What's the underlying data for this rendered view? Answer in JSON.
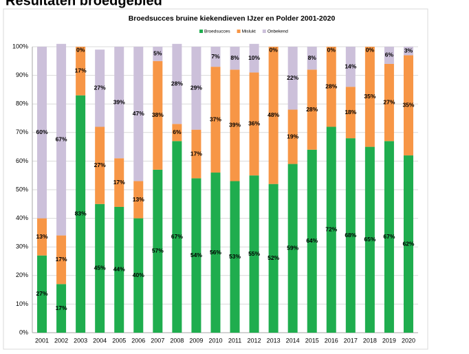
{
  "heading": "Resultaten broedgebied",
  "chart_data": {
    "type": "stacked_bar",
    "title": "Broedsucces bruine kiekendieven IJzer en Polder 2001-2020",
    "categories": [
      "2001",
      "2002",
      "2003",
      "2004",
      "2005",
      "2006",
      "2007",
      "2008",
      "2009",
      "2010",
      "2011",
      "2012",
      "2013",
      "2014",
      "2015",
      "2016",
      "2017",
      "2018",
      "2019",
      "2020"
    ],
    "series": [
      {
        "name": "Broedsucces",
        "color": "#1fad4e",
        "values": [
          27,
          17,
          83,
          45,
          44,
          40,
          57,
          67,
          54,
          56,
          53,
          55,
          52,
          59,
          64,
          72,
          68,
          65,
          67,
          62
        ],
        "value_labels": [
          "27%",
          "17%",
          "83%",
          "45%",
          "44%",
          "40%",
          "57%",
          "67%",
          "54%",
          "56%",
          "53%",
          "55%",
          "52%",
          "59%",
          "64%",
          "72%",
          "68%",
          "65%",
          "67%",
          "62%"
        ]
      },
      {
        "name": "Mislukt",
        "color": "#f79646",
        "values": [
          13,
          17,
          17,
          27,
          17,
          13,
          38,
          6,
          17,
          37,
          39,
          36,
          48,
          19,
          28,
          28,
          18,
          35,
          27,
          35
        ],
        "value_labels": [
          "13%",
          "17%",
          "17%",
          "27%",
          "17%",
          "13%",
          "38%",
          "6%",
          "17%",
          "37%",
          "39%",
          "36%",
          "48%",
          "19%",
          "28%",
          "28%",
          "18%",
          "35%",
          "27%",
          "35%"
        ]
      },
      {
        "name": "Onbekend",
        "color": "#ccc0da",
        "values": [
          60,
          67,
          0,
          27,
          39,
          47,
          5,
          28,
          29,
          7,
          8,
          10,
          0,
          22,
          8,
          0,
          14,
          0,
          6,
          3
        ],
        "value_labels": [
          "60%",
          "67%",
          "0%",
          "27%",
          "39%",
          "47%",
          "5%",
          "28%",
          "29%",
          "7%",
          "8%",
          "10%",
          "0%",
          "22%",
          "8%",
          "0%",
          "14%",
          "0%",
          "6%",
          "3%"
        ]
      }
    ],
    "ylim": [
      0,
      100
    ],
    "yticks": [
      {
        "value": 0,
        "label": "0%"
      },
      {
        "value": 10,
        "label": "10%"
      },
      {
        "value": 20,
        "label": "20%"
      },
      {
        "value": 30,
        "label": "30%"
      },
      {
        "value": 40,
        "label": "40%"
      },
      {
        "value": 50,
        "label": "50%"
      },
      {
        "value": 60,
        "label": "60%"
      },
      {
        "value": 70,
        "label": "70%"
      },
      {
        "value": 80,
        "label": "80%"
      },
      {
        "value": 90,
        "label": "90%"
      },
      {
        "value": 100,
        "label": "100%"
      }
    ],
    "grid": true,
    "legend": "top"
  }
}
